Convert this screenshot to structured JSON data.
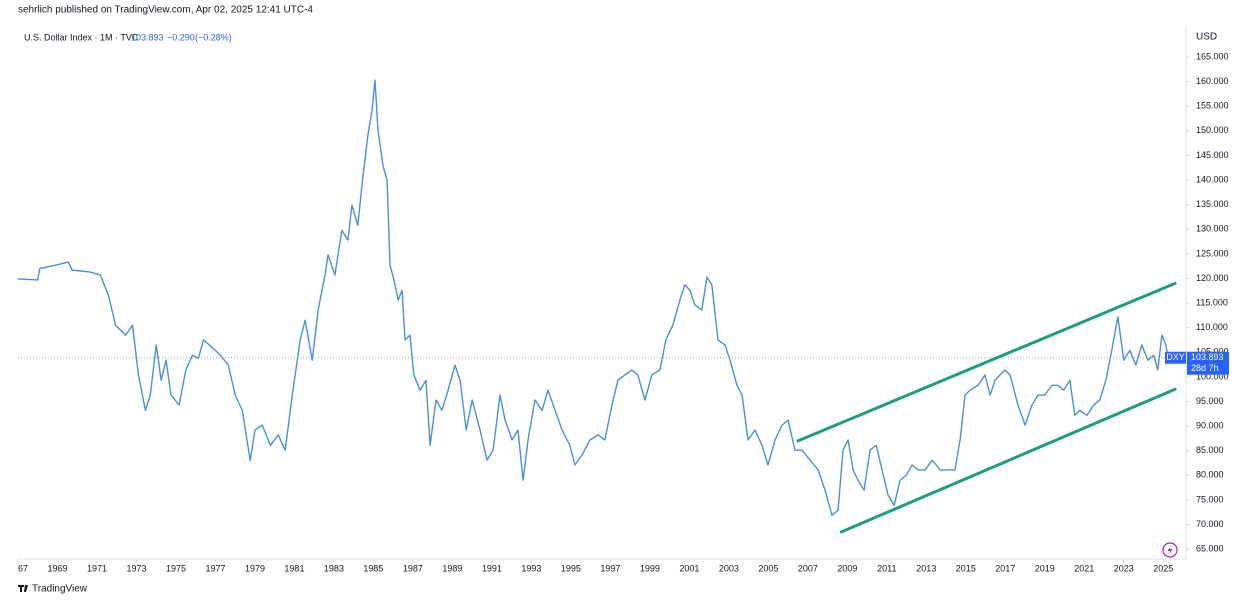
{
  "header": {
    "publisher": "sehrlich published on TradingView.com, Apr 02, 2025 12:41 UTC-4",
    "symbol": "U.S. Dollar Index · 1M · TVC",
    "change": "−0.290",
    "change_pct": "(−0.28%)",
    "brand": "TradingView"
  },
  "chart_data": {
    "type": "line",
    "color": "#4a8fd8",
    "grid": false,
    "y_axis_unit": "USD",
    "symbol_tag": "DXY",
    "countdown": "28d 7h",
    "last_value": 103.893,
    "xlim": [
      1967,
      2026.1
    ],
    "xticks": [
      {
        "value": 1967,
        "label": "67"
      },
      1969,
      1971,
      1973,
      1975,
      1977,
      1979,
      1981,
      1983,
      1985,
      1987,
      1989,
      1991,
      1993,
      1995,
      1997,
      1999,
      2001,
      2003,
      2005,
      2007,
      2009,
      2011,
      2013,
      2015,
      2017,
      2019,
      2021,
      2023,
      2025
    ],
    "ylim": [
      63.2,
      170.9
    ],
    "yticks": [
      {
        "value": 65,
        "label": "65.000"
      },
      {
        "value": 70,
        "label": "70.000"
      },
      {
        "value": 75,
        "label": "75.000"
      },
      {
        "value": 80,
        "label": "80.000"
      },
      {
        "value": 85,
        "label": "85.000"
      },
      {
        "value": 90,
        "label": "90.000"
      },
      {
        "value": 95,
        "label": "95.000"
      },
      {
        "value": 100,
        "label": "100.000"
      },
      {
        "value": 105,
        "label": "105.000"
      },
      {
        "value": 110,
        "label": "110.000"
      },
      {
        "value": 115,
        "label": "115.000"
      },
      {
        "value": 120,
        "label": "120.000"
      },
      {
        "value": 125,
        "label": "125.000"
      },
      {
        "value": 130,
        "label": "130.000"
      },
      {
        "value": 135,
        "label": "135.000"
      },
      {
        "value": 140,
        "label": "140.000"
      },
      {
        "value": 145,
        "label": "145.000"
      },
      {
        "value": 150,
        "label": "150.000"
      },
      {
        "value": 155,
        "label": "155.000"
      },
      {
        "value": 160,
        "label": "160.000"
      },
      {
        "value": 165,
        "label": "165.000"
      }
    ],
    "channel_color": "#1f9d7c",
    "channel_lines": [
      {
        "x": [
          2006.5,
          2025.6
        ],
        "y": [
          87,
          119
        ]
      },
      {
        "x": [
          2008.7,
          2025.6
        ],
        "y": [
          68.5,
          97.5
        ]
      }
    ],
    "x": [
      1967.0,
      1968.0,
      1968.1,
      1969.55,
      1969.75,
      1970.66,
      1971.17,
      1971.58,
      1971.94,
      1972.45,
      1972.8,
      1973.1,
      1973.45,
      1973.7,
      1974.0,
      1974.25,
      1974.5,
      1974.75,
      1975.16,
      1975.5,
      1975.83,
      1976.14,
      1976.39,
      1976.75,
      1977.25,
      1977.65,
      1978.0,
      1978.36,
      1978.76,
      1979.0,
      1979.37,
      1979.78,
      1980.18,
      1980.53,
      1980.89,
      1981.29,
      1981.54,
      1981.9,
      1982.2,
      1982.55,
      1982.7,
      1983.05,
      1983.4,
      1983.71,
      1983.91,
      1984.21,
      1984.42,
      1984.72,
      1984.93,
      1985.08,
      1985.23,
      1985.48,
      1985.69,
      1985.84,
      1986.04,
      1986.25,
      1986.45,
      1986.6,
      1986.85,
      1987.05,
      1987.36,
      1987.66,
      1987.87,
      1988.17,
      1988.47,
      1988.78,
      1989.13,
      1989.39,
      1989.7,
      1990.0,
      1990.4,
      1990.75,
      1991.06,
      1991.41,
      1991.67,
      1992.02,
      1992.32,
      1992.58,
      1992.83,
      1993.18,
      1993.54,
      1993.84,
      1994.2,
      1994.55,
      1994.95,
      1995.2,
      1995.56,
      1995.96,
      1996.37,
      1996.72,
      1997.08,
      1997.38,
      1997.73,
      1998.09,
      1998.39,
      1998.75,
      1999.1,
      1999.51,
      1999.81,
      2000.16,
      2000.52,
      2000.77,
      2001.03,
      2001.28,
      2001.63,
      2001.89,
      2002.14,
      2002.45,
      2002.8,
      2003.06,
      2003.41,
      2003.67,
      2003.97,
      2004.32,
      2004.68,
      2004.98,
      2005.34,
      2005.69,
      2006.0,
      2006.35,
      2006.71,
      2007.11,
      2007.52,
      2007.87,
      2008.22,
      2008.53,
      2008.78,
      2009.04,
      2009.29,
      2009.54,
      2009.85,
      2010.15,
      2010.46,
      2010.76,
      2011.06,
      2011.37,
      2011.67,
      2011.98,
      2012.28,
      2012.58,
      2012.94,
      2013.3,
      2013.7,
      2014.1,
      2014.45,
      2014.71,
      2014.96,
      2015.21,
      2015.62,
      2015.97,
      2016.23,
      2016.48,
      2016.73,
      2016.98,
      2017.24,
      2017.64,
      2018.0,
      2018.35,
      2018.65,
      2019.0,
      2019.36,
      2019.66,
      2019.96,
      2020.27,
      2020.52,
      2020.77,
      2021.13,
      2021.48,
      2021.78,
      2022.09,
      2022.39,
      2022.7,
      2023.0,
      2023.31,
      2023.61,
      2023.91,
      2024.22,
      2024.52,
      2024.72,
      2024.93,
      2025.13,
      2025.25
    ],
    "values": [
      119.9,
      119.7,
      122,
      123.3,
      121.7,
      121.3,
      120.7,
      116.6,
      110.5,
      108.5,
      110.5,
      100.4,
      93.2,
      96.3,
      106.5,
      99.3,
      103.4,
      96.3,
      94.3,
      101.4,
      104.4,
      103.8,
      107.5,
      106.3,
      104.4,
      102.4,
      96.3,
      93.2,
      83,
      89.2,
      90.2,
      86.1,
      88.2,
      85.1,
      96.3,
      107.5,
      111.5,
      103.4,
      113.6,
      120.7,
      124.8,
      120.7,
      129.8,
      127.8,
      134.9,
      130.8,
      139,
      149.1,
      154.2,
      160.3,
      150.2,
      143,
      140,
      122.7,
      119.7,
      115.6,
      117.6,
      107.5,
      108.5,
      100.4,
      97.3,
      99.3,
      86.1,
      95.3,
      93.2,
      97.3,
      102.4,
      99.3,
      89.2,
      95.3,
      89.2,
      83.1,
      85.1,
      96.3,
      91.2,
      87.2,
      89.2,
      79,
      87.2,
      95.3,
      93.2,
      97.3,
      93.2,
      89.2,
      86.1,
      82.1,
      84.1,
      87.2,
      88.2,
      87.2,
      94.3,
      99.3,
      100.4,
      101.4,
      100.4,
      95.3,
      100.4,
      101.4,
      107.5,
      110.5,
      115.6,
      118.7,
      117.6,
      114.6,
      113.6,
      120.3,
      118.7,
      107.5,
      106.5,
      103.4,
      98.3,
      96.3,
      87.2,
      89.2,
      86.1,
      82.1,
      87.2,
      90.2,
      91.2,
      85.1,
      85.1,
      83.1,
      81.1,
      77,
      71.9,
      72.9,
      85.1,
      87.2,
      81.1,
      79,
      77,
      85.1,
      86.1,
      81.1,
      76,
      73.9,
      79,
      80,
      82.1,
      81.1,
      81.1,
      83.1,
      81.1,
      81.1,
      81.1,
      87.2,
      96.3,
      97.3,
      98.3,
      100.4,
      96.3,
      99.3,
      100.4,
      101.4,
      100.4,
      94.3,
      90.2,
      94.3,
      96.3,
      96.3,
      98.3,
      98.3,
      97.3,
      99.3,
      92.2,
      93.2,
      92.2,
      94.3,
      95.3,
      99.3,
      105.4,
      112.2,
      103.4,
      105.4,
      102.4,
      106.5,
      103.4,
      104.4,
      101.4,
      108.5,
      106.5,
      103.9
    ]
  }
}
